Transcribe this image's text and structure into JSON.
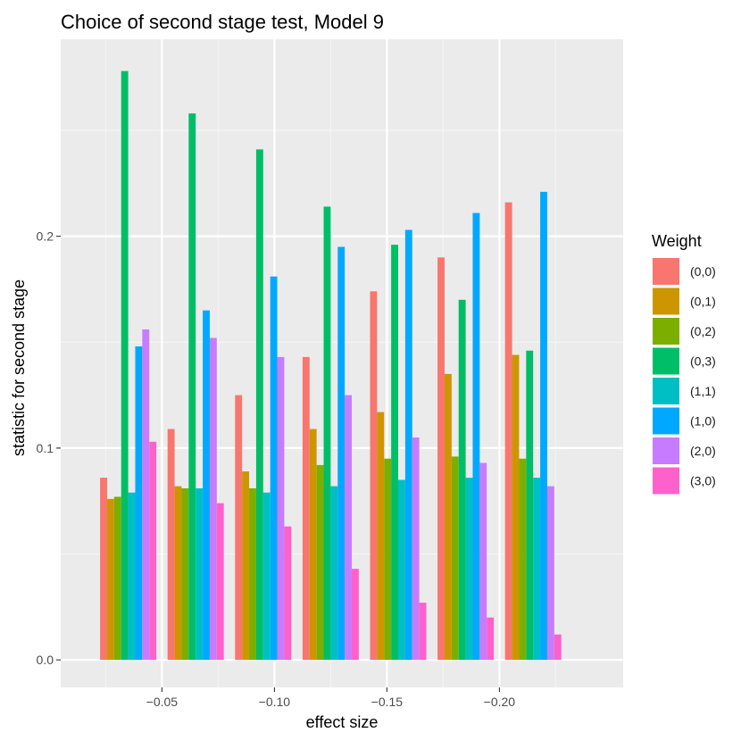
{
  "chart_data": {
    "type": "bar",
    "title": "Choice of second stage test, Model 9",
    "xlabel": "effect size",
    "ylabel": "statistic for second stage",
    "x_axis": {
      "min": -0.255,
      "max": -0.005,
      "direction": "reversed",
      "ticks": [
        -0.05,
        -0.1,
        -0.15,
        -0.2
      ],
      "tick_labels": [
        "−0.05",
        "−0.10",
        "−0.15",
        "−0.20"
      ]
    },
    "y_axis": {
      "min": -0.013,
      "max": 0.293,
      "ticks": [
        0.0,
        0.1,
        0.2
      ],
      "tick_labels": [
        "0.0",
        "0.1",
        "0.2"
      ]
    },
    "bar_group_width": 0.025,
    "groups_x": [
      -0.035,
      -0.065,
      -0.095,
      -0.125,
      -0.155,
      -0.185,
      -0.215
    ],
    "series": [
      {
        "name": "(0,0)",
        "color": "#F8766D",
        "values": [
          0.086,
          0.109,
          0.125,
          0.143,
          0.174,
          0.19,
          0.216
        ]
      },
      {
        "name": "(0,1)",
        "color": "#CD9600",
        "values": [
          0.076,
          0.082,
          0.089,
          0.109,
          0.117,
          0.135,
          0.144
        ]
      },
      {
        "name": "(0,2)",
        "color": "#7CAE00",
        "values": [
          0.077,
          0.081,
          0.081,
          0.092,
          0.095,
          0.096,
          0.095
        ]
      },
      {
        "name": "(0,3)",
        "color": "#00BE67",
        "values": [
          0.278,
          0.258,
          0.241,
          0.214,
          0.196,
          0.17,
          0.146
        ]
      },
      {
        "name": "(1,1)",
        "color": "#00BFC4",
        "values": [
          0.079,
          0.081,
          0.079,
          0.082,
          0.085,
          0.086,
          0.086
        ]
      },
      {
        "name": "(1,0)",
        "color": "#00A9FF",
        "values": [
          0.148,
          0.165,
          0.181,
          0.195,
          0.203,
          0.211,
          0.221
        ]
      },
      {
        "name": "(2,0)",
        "color": "#C77CFF",
        "values": [
          0.156,
          0.152,
          0.143,
          0.125,
          0.105,
          0.093,
          0.082
        ]
      },
      {
        "name": "(3,0)",
        "color": "#FF61CC",
        "values": [
          0.103,
          0.074,
          0.063,
          0.043,
          0.027,
          0.02,
          0.012
        ]
      }
    ],
    "legend": {
      "title": "Weight",
      "position": "right"
    },
    "grid": true,
    "panel_background": "#EBEBEB",
    "grid_major_color": "#FFFFFF",
    "grid_minor_color": "#F5F5F5"
  }
}
